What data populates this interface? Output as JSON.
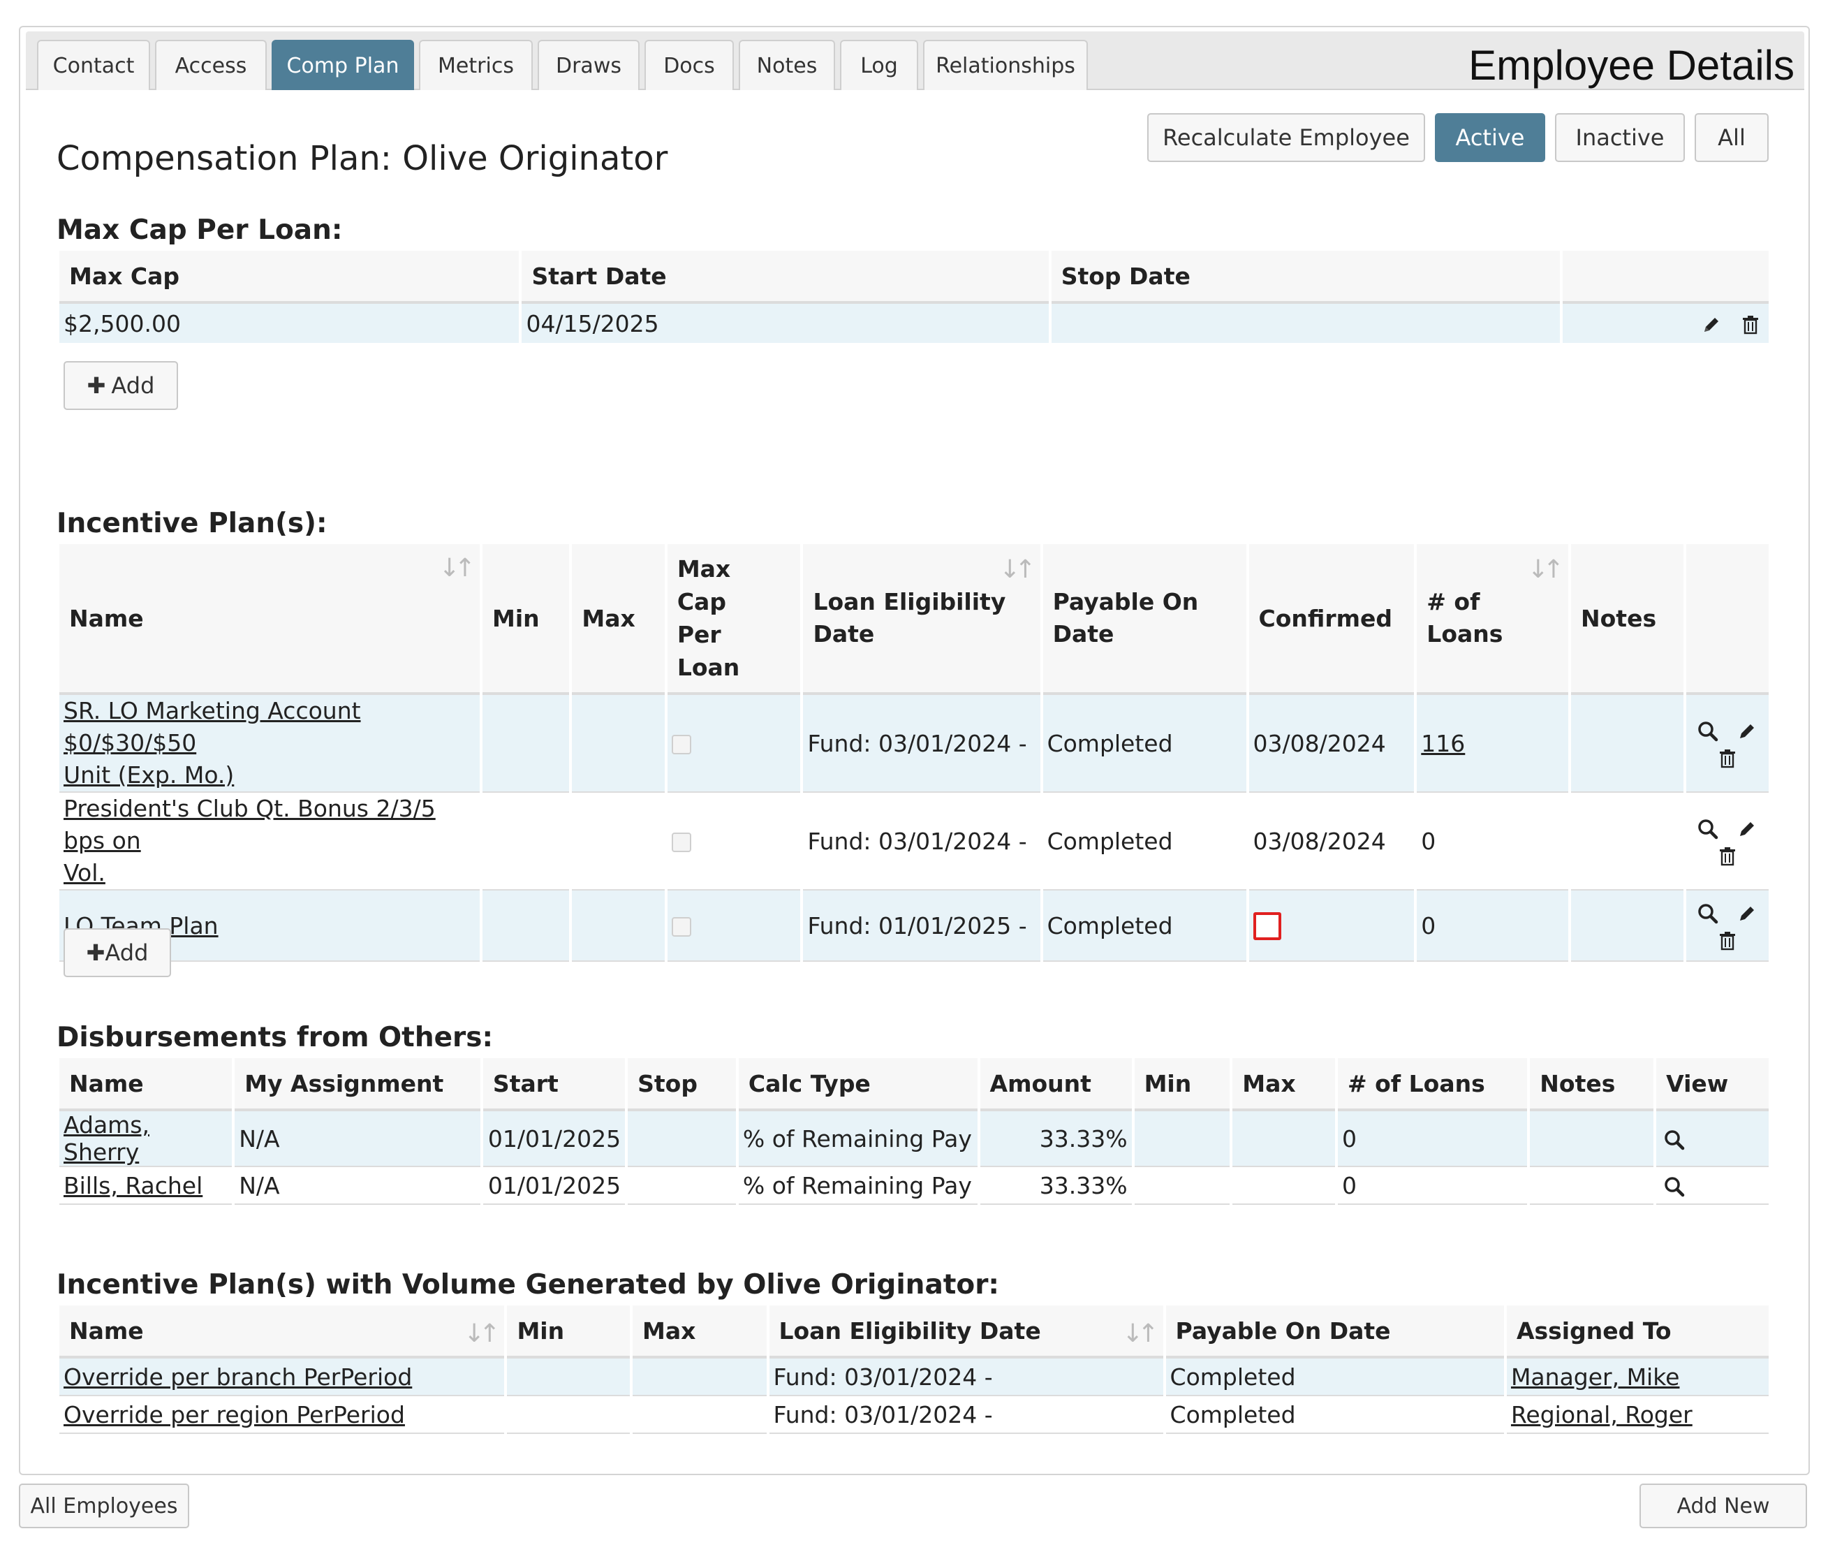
{
  "tabs": [
    {
      "label": "Contact"
    },
    {
      "label": "Access"
    },
    {
      "label": "Comp Plan"
    },
    {
      "label": "Metrics"
    },
    {
      "label": "Draws"
    },
    {
      "label": "Docs"
    },
    {
      "label": "Notes"
    },
    {
      "label": "Log"
    },
    {
      "label": "Relationships"
    }
  ],
  "active_tab": "Comp Plan",
  "header_title": "Employee Details",
  "page_title": "Compensation Plan: Olive Originator",
  "toolbar": {
    "recalc_label": "Recalculate Employee",
    "active_label": "Active",
    "inactive_label": "Inactive",
    "all_label": "All"
  },
  "max_cap": {
    "title": "Max Cap Per Loan:",
    "columns": [
      "Max Cap",
      "Start Date",
      "Stop Date",
      ""
    ],
    "rows": [
      {
        "max_cap": "$2,500.00",
        "start_date": "04/15/2025",
        "stop_date": ""
      }
    ],
    "add_label": "Add"
  },
  "incentive": {
    "title": "Incentive Plan(s):",
    "columns": {
      "name": "Name",
      "min": "Min",
      "max": "Max",
      "max_cap_1": "Max",
      "max_cap_2": "Cap",
      "max_cap_3": "Per",
      "max_cap_4": "Loan",
      "loan_elig_1": "Loan Eligibility",
      "loan_elig_2": "Date",
      "payable_1": "Payable On",
      "payable_2": "Date",
      "confirmed": "Confirmed",
      "loans_1": "# of",
      "loans_2": "Loans",
      "notes": "Notes"
    },
    "rows": [
      {
        "name_1": "SR. LO Marketing Account $0/$30/$50",
        "name_2": "Unit (Exp. Mo.)",
        "min": "",
        "max": "",
        "max_cap_checked": false,
        "loan_eligibility": "Fund: 03/01/2024 -",
        "payable_on": "Completed",
        "confirmed": "03/08/2024",
        "loans": "116",
        "notes": ""
      },
      {
        "name_1": "President's Club Qt. Bonus 2/3/5 bps on",
        "name_2": "Vol.",
        "min": "",
        "max": "",
        "max_cap_checked": false,
        "loan_eligibility": "Fund: 03/01/2024 -",
        "payable_on": "Completed",
        "confirmed": "03/08/2024",
        "loans": "0",
        "notes": ""
      },
      {
        "name_1": "LO Team Plan",
        "name_2": "",
        "min": "",
        "max": "",
        "max_cap_checked": false,
        "loan_eligibility": "Fund: 01/01/2025 -",
        "payable_on": "Completed",
        "confirmed": "",
        "loans": "0",
        "notes": ""
      }
    ],
    "add_label": "Add"
  },
  "disbursements": {
    "title": "Disbursements from Others:",
    "columns": [
      "Name",
      "My Assignment",
      "Start",
      "Stop",
      "Calc Type",
      "Amount",
      "Min",
      "Max",
      "# of Loans",
      "Notes",
      "View"
    ],
    "rows": [
      {
        "name": "Adams, Sherry",
        "assignment": "N/A",
        "start": "01/01/2025",
        "stop": "",
        "calc_type": "% of Remaining Pay",
        "amount": "33.33%",
        "min": "",
        "max": "",
        "loans": "0",
        "notes": ""
      },
      {
        "name": "Bills, Rachel",
        "assignment": "N/A",
        "start": "01/01/2025",
        "stop": "",
        "calc_type": "% of Remaining Pay",
        "amount": "33.33%",
        "min": "",
        "max": "",
        "loans": "0",
        "notes": ""
      }
    ]
  },
  "volume": {
    "title": "Incentive Plan(s) with Volume Generated by Olive Originator:",
    "columns": [
      "Name",
      "Min",
      "Max",
      "Loan Eligibility Date",
      "Payable On Date",
      "Assigned To"
    ],
    "rows": [
      {
        "name": "Override per branch PerPeriod",
        "min": "",
        "max": "",
        "loan_eligibility": "Fund: 03/01/2024 -",
        "payable_on": "Completed",
        "assigned_to": "Manager, Mike"
      },
      {
        "name": "Override per region PerPeriod",
        "min": "",
        "max": "",
        "loan_eligibility": "Fund: 03/01/2024 -",
        "payable_on": "Completed",
        "assigned_to": "Regional, Roger"
      }
    ]
  },
  "footer": {
    "all_employees_label": "All Employees",
    "add_new_label": "Add New"
  },
  "colors": {
    "accent": "#4f7e97",
    "row_highlight": "#e8f3f8",
    "error_border": "#e02020"
  },
  "icons": {
    "edit": "pencil-icon",
    "delete": "trash-icon",
    "view": "magnifier-icon",
    "sort": "sort-icon",
    "add": "plus-icon"
  }
}
